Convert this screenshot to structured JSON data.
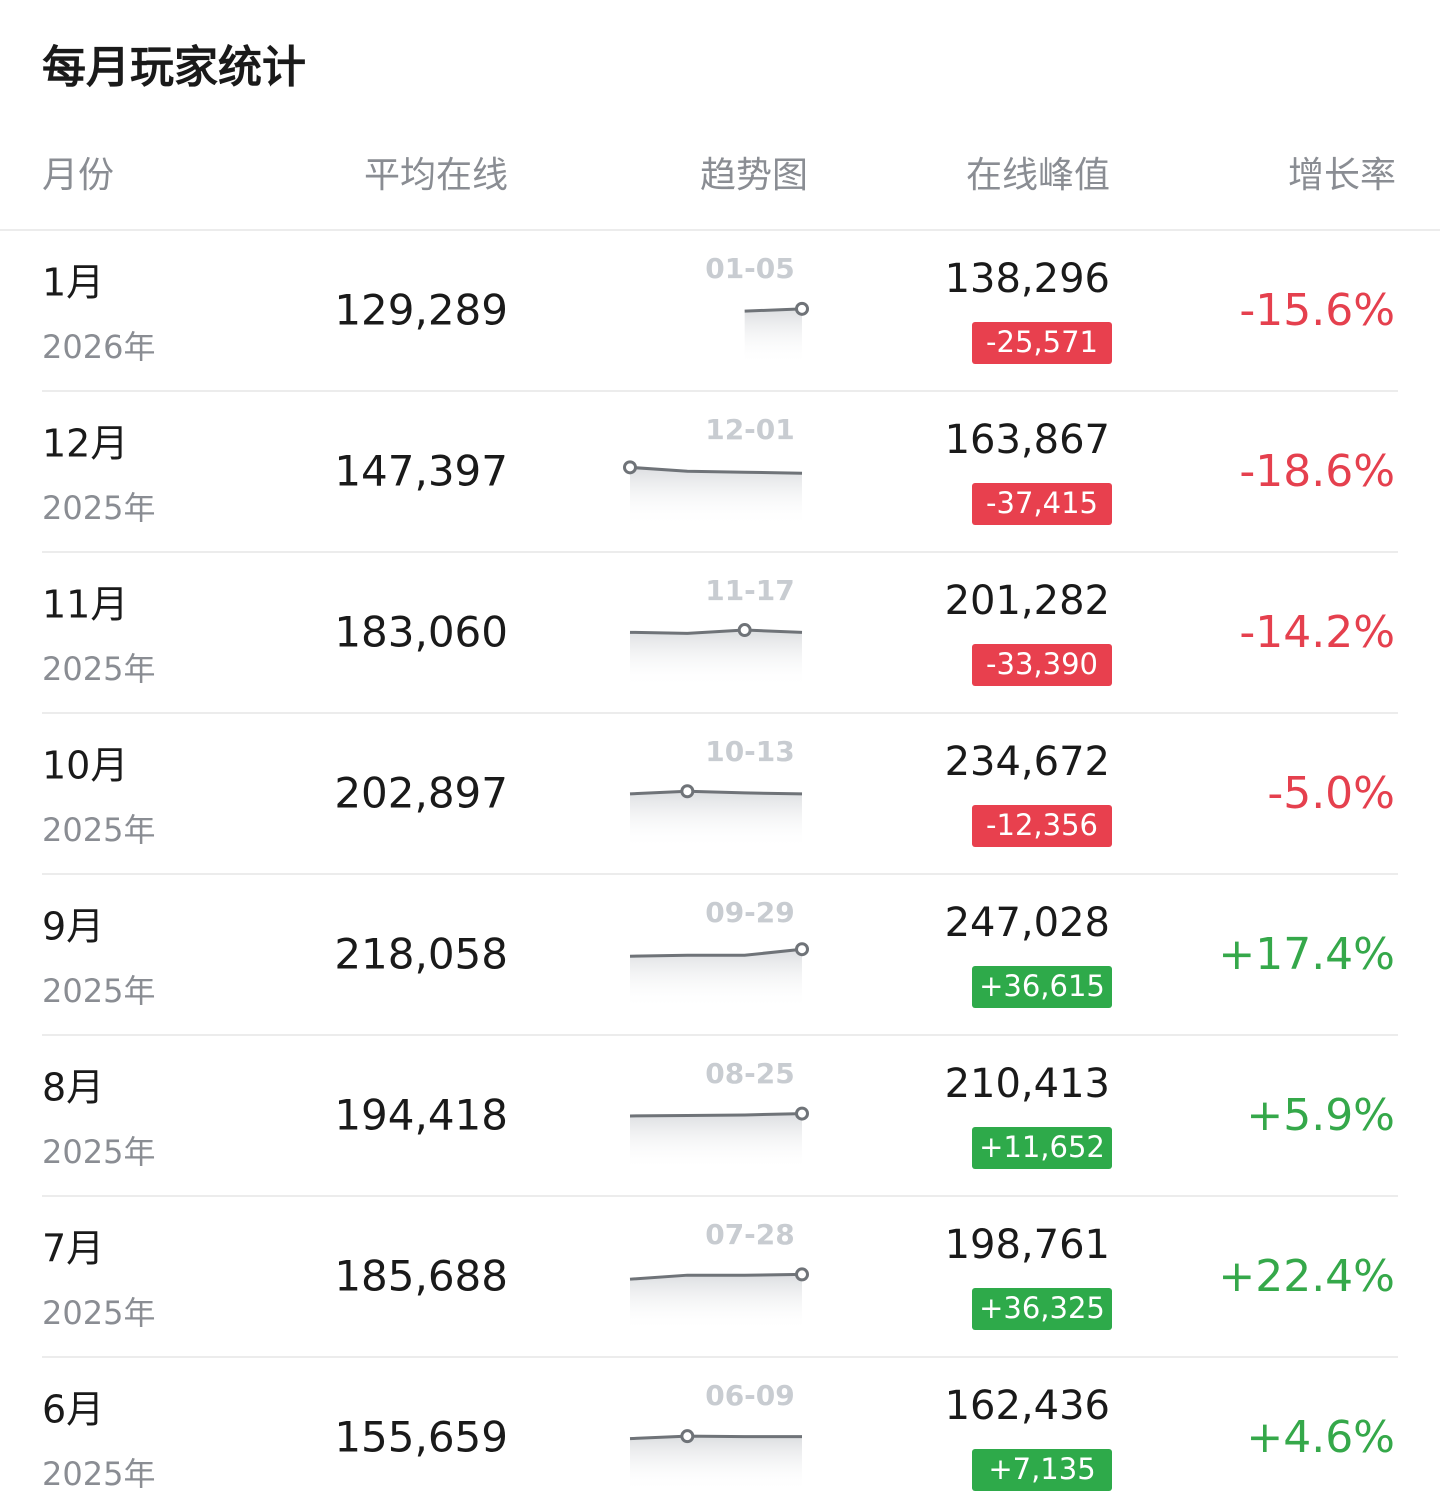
{
  "title": "每月玩家统计",
  "columns": [
    "月份",
    "平均在线",
    "趋势图",
    "在线峰值",
    "增长率"
  ],
  "rows": [
    {
      "month": "1月",
      "year": "2026年",
      "average": "129,289",
      "trend": {
        "label": "01-05",
        "values": [
          136000,
          138296
        ],
        "peak_index": 1
      },
      "peak": "138,296",
      "change": "-25,571",
      "growth": "-15.6%"
    },
    {
      "month": "12月",
      "year": "2025年",
      "average": "147,397",
      "trend": {
        "label": "12-01",
        "values": [
          163867,
          160000,
          159000,
          158000
        ],
        "peak_index": 0
      },
      "peak": "163,867",
      "change": "-37,415",
      "growth": "-18.6%"
    },
    {
      "month": "11月",
      "year": "2025年",
      "average": "183,060",
      "trend": {
        "label": "11-17",
        "values": [
          199000,
          198000,
          201282,
          199000
        ],
        "peak_index": 2
      },
      "peak": "201,282",
      "change": "-33,390",
      "growth": "-14.2%"
    },
    {
      "month": "10月",
      "year": "2025年",
      "average": "202,897",
      "trend": {
        "label": "10-13",
        "values": [
          232000,
          234672,
          233000,
          232000
        ],
        "peak_index": 1
      },
      "peak": "234,672",
      "change": "-12,356",
      "growth": "-5.0%"
    },
    {
      "month": "9月",
      "year": "2025年",
      "average": "218,058",
      "trend": {
        "label": "09-29",
        "values": [
          240000,
          241000,
          241000,
          247028
        ],
        "peak_index": 3
      },
      "peak": "247,028",
      "change": "+36,615",
      "growth": "+17.4%"
    },
    {
      "month": "8月",
      "year": "2025年",
      "average": "194,418",
      "trend": {
        "label": "08-25",
        "values": [
          208000,
          208500,
          209000,
          210413
        ],
        "peak_index": 3
      },
      "peak": "210,413",
      "change": "+11,652",
      "growth": "+5.9%"
    },
    {
      "month": "7月",
      "year": "2025年",
      "average": "185,688",
      "trend": {
        "label": "07-28",
        "values": [
          194000,
          198000,
          198000,
          198761
        ],
        "peak_index": 3
      },
      "peak": "198,761",
      "change": "+36,325",
      "growth": "+22.4%"
    },
    {
      "month": "6月",
      "year": "2025年",
      "average": "155,659",
      "trend": {
        "label": "06-09",
        "values": [
          160000,
          162436,
          162000,
          162000
        ],
        "peak_index": 1
      },
      "peak": "162,436",
      "change": "+7,135",
      "growth": "+4.6%"
    }
  ]
}
